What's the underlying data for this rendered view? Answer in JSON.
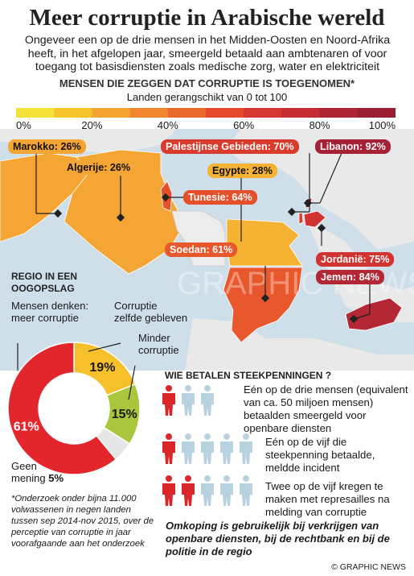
{
  "title": "Meer corruptie in Arabische wereld",
  "intro": "Ongeveer een op de drie mensen in het Midden-Oosten en Noord-Afrika heeft, in het afgelopen jaar, smeergeld betaald aan ambtenaren of voor toegang tot basisdiensten zoals medische zorg, water en elektriciteit",
  "map_heading": "Mensen die zeggen dat corruptie is toegenomen*",
  "map_subheading": "Landen gerangschikt van 0 tot 100",
  "scale": {
    "ticks": [
      "0%",
      "20%",
      "40%",
      "60%",
      "80%",
      "100%"
    ],
    "colors": [
      "#f4e23a",
      "#f6c52e",
      "#f5a431",
      "#f08630",
      "#ea6a2e",
      "#e34b2c",
      "#d53631",
      "#c42b32",
      "#b02536",
      "#9a1f33"
    ]
  },
  "chart_data": [
    {
      "type": "map",
      "title": "Mensen die zeggen dat corruptie is toegenomen*",
      "subtitle": "Landen gerangschikt van 0 tot 100",
      "unit": "%",
      "countries": [
        {
          "name": "Marokko",
          "label": "Marokko: 26%",
          "value": 26,
          "color": "#f5a533"
        },
        {
          "name": "Algerije",
          "label": "Algerije: 26%",
          "value": 26,
          "color": "#f5a533"
        },
        {
          "name": "Tunesie",
          "label": "Tunesie: 64%",
          "value": 64,
          "color": "#e5502b"
        },
        {
          "name": "Egypte",
          "label": "Egypte: 28%",
          "value": 28,
          "color": "#f6b232"
        },
        {
          "name": "Soedan",
          "label": "Soedan: 61%",
          "value": 61,
          "color": "#e8582c"
        },
        {
          "name": "Palestijnse Gebieden",
          "label": "Palestijnse Gebieden: 70%",
          "value": 70,
          "color": "#d93b2c"
        },
        {
          "name": "Libanon",
          "label": "Libanon: 92%",
          "value": 92,
          "color": "#a62036"
        },
        {
          "name": "Jordanië",
          "label": "Jordanië: 75%",
          "value": 75,
          "color": "#d13430"
        },
        {
          "name": "Jemen",
          "label": "Jemen: 84%",
          "value": 84,
          "color": "#b42735"
        }
      ]
    },
    {
      "type": "pie",
      "title": "Regio in een oogopslag",
      "unit": "%",
      "slices": [
        {
          "label": "Corruptie zelfde gebleven",
          "value": 19,
          "display": "19%",
          "color": "#f6c02a"
        },
        {
          "label": "Minder corruptie",
          "value": 15,
          "display": "15%",
          "color": "#a9c63c"
        },
        {
          "label": "Geen mening",
          "value": 5,
          "display": "5%",
          "color": "#e6e6e6"
        },
        {
          "label": "Mensen denken: meer corruptie",
          "value": 61,
          "display": "61%",
          "color": "#e2262c"
        }
      ]
    }
  ],
  "regio": {
    "title_line1": "Regio in een",
    "title_line2": "oogopslag",
    "lbl_meer_1": "Mensen denken:",
    "lbl_meer_2": "meer corruptie",
    "lbl_zelfde_1": "Corruptie",
    "lbl_zelfde_2": "zelfde gebleven",
    "lbl_minder_1": "Minder",
    "lbl_minder_2": "corruptie",
    "geen_1": "Geen",
    "geen_2": "mening",
    "geen_value": "5%"
  },
  "note": "*Onderzoek onder bijna 11.000 volwassenen in negen landen tussen sep 2014-nov 2015, over de perceptie van corruptie in jaar voorafgaande aan het onderzoek",
  "payments": {
    "heading": "Wie betalen steekpenningen ?",
    "icon_colors": {
      "highlight": "#d9262b",
      "base": "#b9d2e0"
    },
    "rows": [
      {
        "highlighted": 1,
        "of": 3,
        "text": "Eén op de drie mensen (equivalent van ca. 50 miljoen mensen) betaalden smeergeld voor openbare diensten"
      },
      {
        "highlighted": 1,
        "of": 5,
        "text": "Eén op de vijf die steekpenning betaalde, meldde incident"
      },
      {
        "highlighted": 2,
        "of": 5,
        "text": "Twee op de vijf kregen te maken met represailles na melding van corruptie"
      }
    ]
  },
  "footer": "Omkoping is gebruikelijk bij verkrijgen van openbare diensten, bij de rechtbank en bij de politie in de regio",
  "credit": "© GRAPHIC NEWS",
  "watermark": "GRAPHIC NEWS"
}
